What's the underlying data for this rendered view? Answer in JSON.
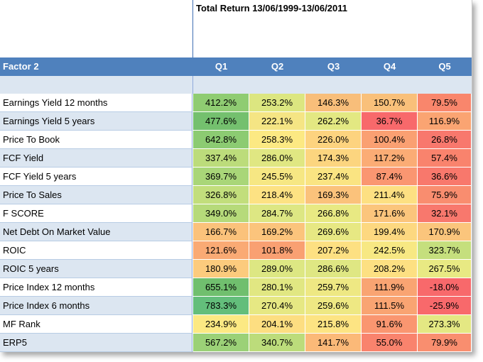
{
  "title": "Total Return 13/06/1999-13/06/2011",
  "header": {
    "factor_label": "Factor 2",
    "quintiles": [
      "Q1",
      "Q2",
      "Q3",
      "Q4",
      "Q5"
    ]
  },
  "rows": [
    {
      "factor": "Earnings Yield 12 months",
      "values": [
        "412.2%",
        "253.2%",
        "146.3%",
        "150.7%",
        "79.5%"
      ],
      "colors": [
        "#8fcc72",
        "#dce680",
        "#f8be7a",
        "#f9c07a",
        "#f9866c"
      ]
    },
    {
      "factor": "Earnings Yield 5 years",
      "values": [
        "477.6%",
        "222.1%",
        "262.2%",
        "36.7%",
        "116.9%"
      ],
      "colors": [
        "#74c06e",
        "#f5e584",
        "#e3e882",
        "#f8696b",
        "#faa472"
      ]
    },
    {
      "factor": "Price To Book",
      "values": [
        "642.8%",
        "258.3%",
        "226.0%",
        "100.4%",
        "26.8%"
      ],
      "colors": [
        "#8ccb72",
        "#fce983",
        "#fdd37f",
        "#faa072",
        "#f8786d"
      ]
    },
    {
      "factor": "FCF Yield",
      "values": [
        "337.4%",
        "286.0%",
        "174.3%",
        "117.2%",
        "57.4%"
      ],
      "colors": [
        "#bcdc7b",
        "#e0e782",
        "#fcd57f",
        "#fbac75",
        "#f9836d"
      ]
    },
    {
      "factor": "FCF Yield 5 years",
      "values": [
        "369.7%",
        "245.5%",
        "237.4%",
        "87.4%",
        "36.6%"
      ],
      "colors": [
        "#a9d678",
        "#f6e783",
        "#fae482",
        "#fa9671",
        "#f8786c"
      ]
    },
    {
      "factor": "Price To Sales",
      "values": [
        "326.8%",
        "218.4%",
        "169.3%",
        "211.4%",
        "75.9%"
      ],
      "colors": [
        "#c2de7c",
        "#fde283",
        "#fbc27b",
        "#fde082",
        "#f98d6f"
      ]
    },
    {
      "factor": "F SCORE",
      "values": [
        "349.0%",
        "284.7%",
        "266.8%",
        "171.6%",
        "32.1%"
      ],
      "colors": [
        "#b6da7a",
        "#dde783",
        "#e8e983",
        "#fbc57c",
        "#f8786d"
      ]
    },
    {
      "factor": "Net Debt On Market Value",
      "values": [
        "166.7%",
        "169.2%",
        "269.6%",
        "199.4%",
        "170.9%"
      ],
      "colors": [
        "#fbc27b",
        "#fbc47c",
        "#e7e883",
        "#fdd880",
        "#fbc57c"
      ]
    },
    {
      "factor": "ROIC",
      "values": [
        "121.6%",
        "101.8%",
        "207.2%",
        "242.5%",
        "323.7%"
      ],
      "colors": [
        "#faaa74",
        "#f9a072",
        "#fde082",
        "#f7e883",
        "#c5df7d"
      ]
    },
    {
      "factor": "ROIC 5 years",
      "values": [
        "180.9%",
        "289.0%",
        "286.6%",
        "208.2%",
        "267.5%"
      ],
      "colors": [
        "#fccb7d",
        "#dde783",
        "#dfe783",
        "#fde082",
        "#e8e983"
      ]
    },
    {
      "factor": "Price Index 12 months",
      "values": [
        "655.1%",
        "280.1%",
        "259.7%",
        "111.9%",
        "-18.0%"
      ],
      "colors": [
        "#70bf6e",
        "#e1e782",
        "#eee883",
        "#f9a472",
        "#f8696b"
      ]
    },
    {
      "factor": "Price Index 6 months",
      "values": [
        "783.3%",
        "270.4%",
        "259.6%",
        "111.5%",
        "-25.9%"
      ],
      "colors": [
        "#63be7b",
        "#e6e883",
        "#eee883",
        "#f9a472",
        "#f8696b"
      ]
    },
    {
      "factor": "MF Rank",
      "values": [
        "234.9%",
        "204.1%",
        "215.8%",
        "91.6%",
        "273.3%"
      ],
      "colors": [
        "#fce983",
        "#fdde81",
        "#fde483",
        "#fa9670",
        "#e4e883"
      ]
    },
    {
      "factor": "ERP5",
      "values": [
        "567.2%",
        "340.7%",
        "141.7%",
        "55.0%",
        "79.9%"
      ],
      "colors": [
        "#9bd177",
        "#bcdc7b",
        "#fbb978",
        "#f9836d",
        "#f98e6f"
      ]
    }
  ]
}
